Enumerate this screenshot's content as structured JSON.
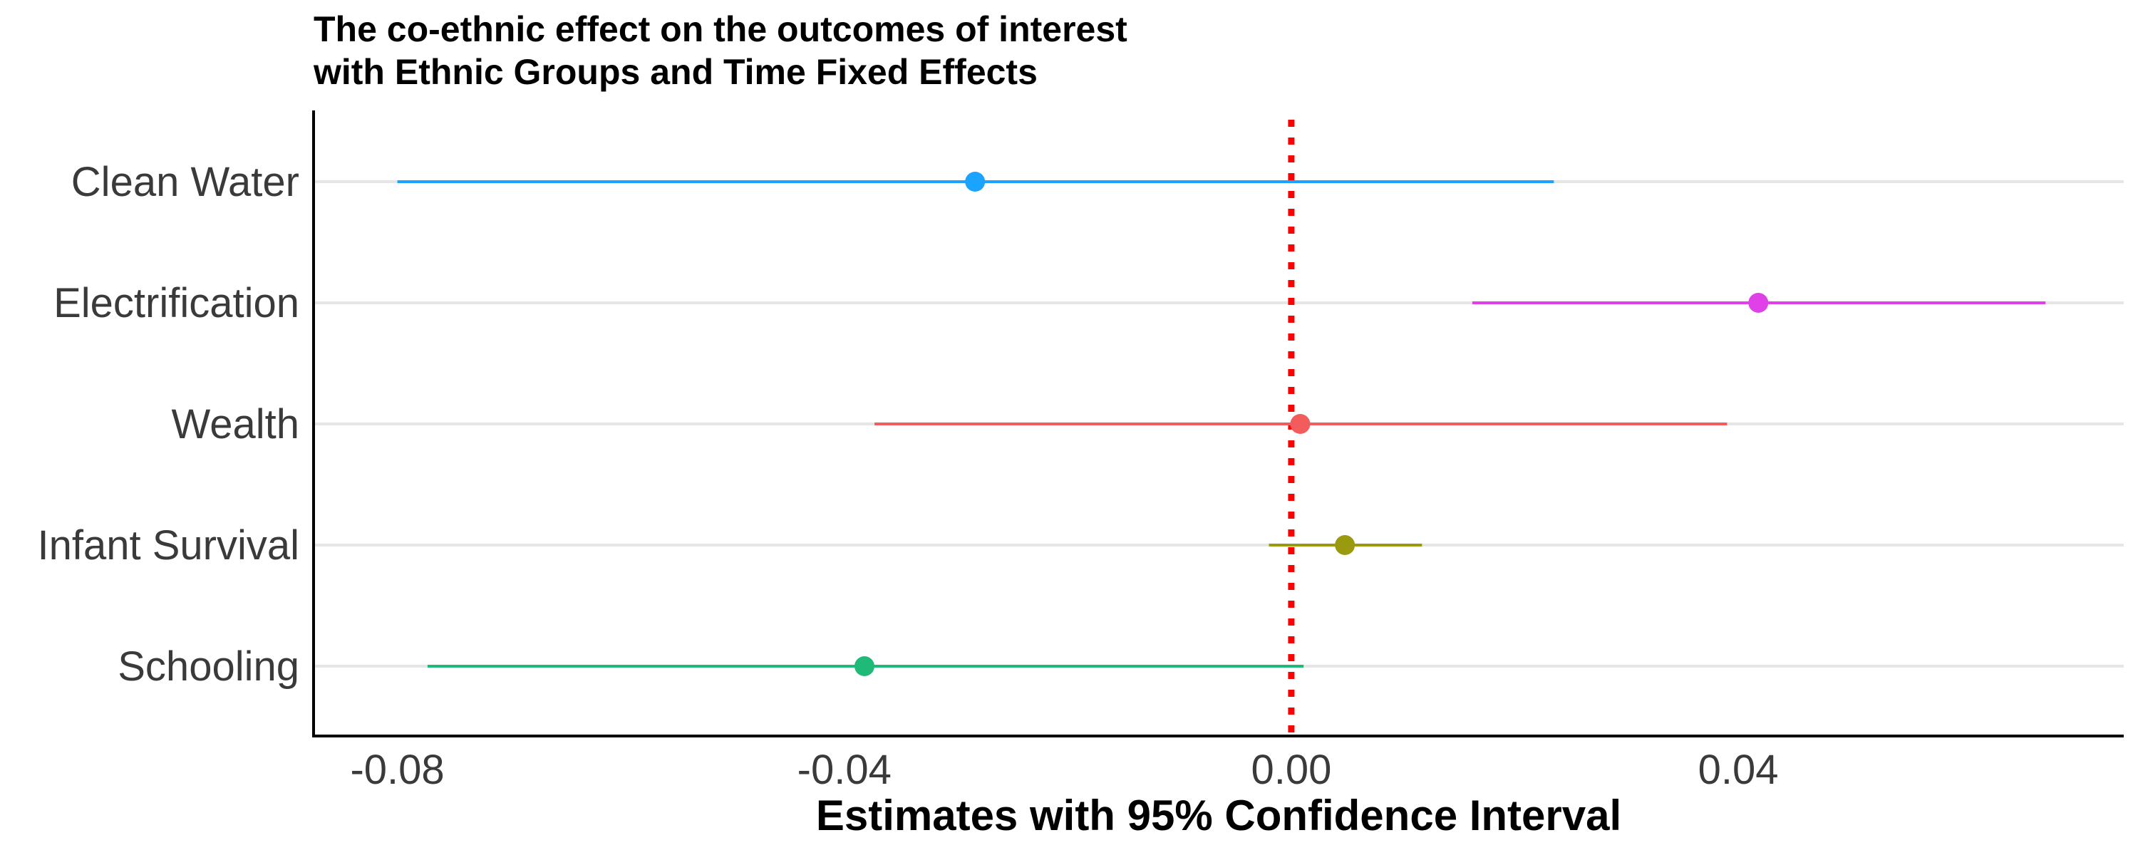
{
  "chart_data": {
    "type": "scatter",
    "title": [
      "The co-ethnic effect on the outcomes of interest",
      "with Ethnic Groups and Time Fixed Effects"
    ],
    "xlabel": "Estimates with 95% Confidence Interval",
    "ylabel": "",
    "xlim": [
      -0.0875,
      0.0745
    ],
    "xticks": [
      -0.08,
      -0.04,
      0.0,
      0.04
    ],
    "xtick_labels": [
      "-0.08",
      "-0.04",
      "0.00",
      "0.04"
    ],
    "grid": "horizontal",
    "legend": "none",
    "reference_line": {
      "x": 0.0,
      "style": "dotted",
      "color": "#ff0000"
    },
    "categories": [
      "Clean Water",
      "Electrification",
      "Wealth",
      "Infant Survival",
      "Schooling"
    ],
    "points": [
      {
        "label": "Clean Water",
        "estimate": -0.0283,
        "ci_low": -0.08,
        "ci_high": 0.0235,
        "color": "#1aa3ff"
      },
      {
        "label": "Electrification",
        "estimate": 0.0418,
        "ci_low": 0.0162,
        "ci_high": 0.0675,
        "color": "#e040e8"
      },
      {
        "label": "Wealth",
        "estimate": 0.0008,
        "ci_low": -0.0373,
        "ci_high": 0.039,
        "color": "#f25c5c"
      },
      {
        "label": "Infant Survival",
        "estimate": 0.0048,
        "ci_low": -0.002,
        "ci_high": 0.0117,
        "color": "#9a9a0f"
      },
      {
        "label": "Schooling",
        "estimate": -0.0382,
        "ci_low": -0.0773,
        "ci_high": 0.0011,
        "color": "#1fba78"
      }
    ]
  }
}
